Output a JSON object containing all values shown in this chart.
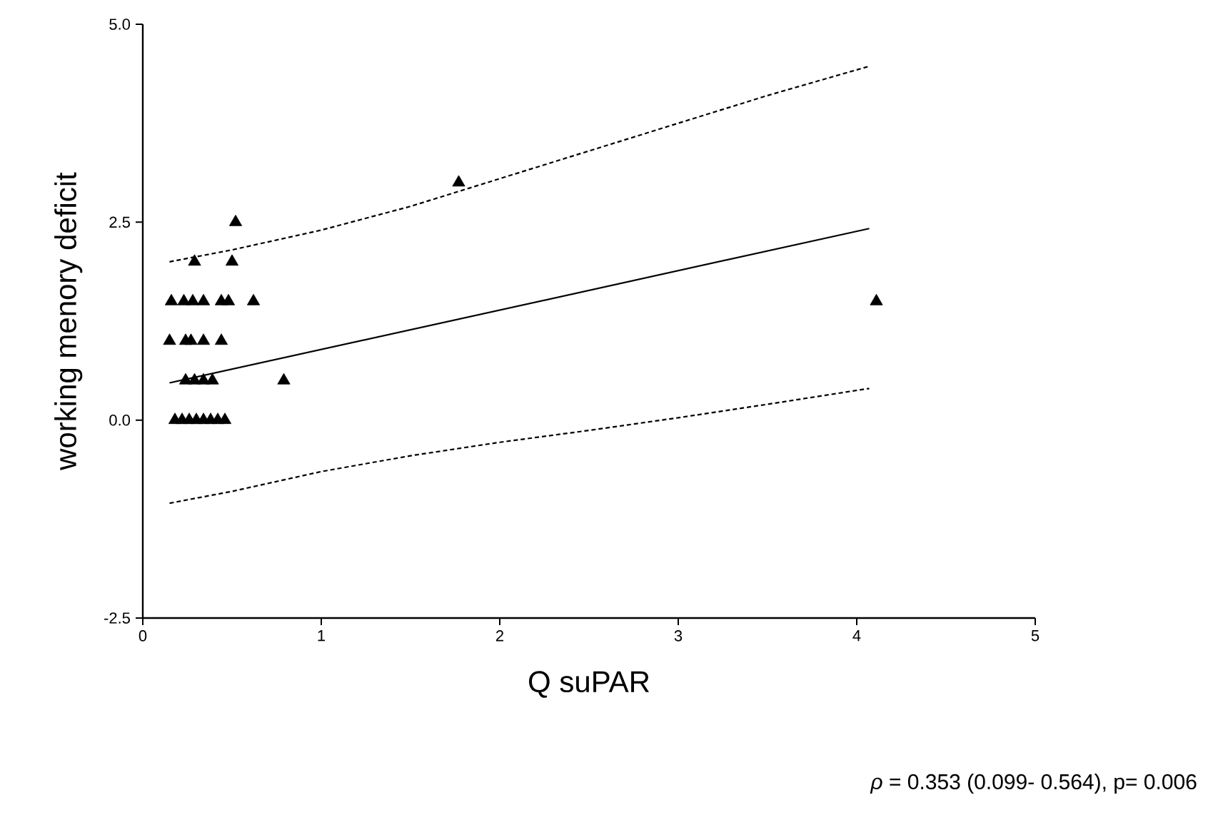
{
  "chart_data": {
    "type": "scatter",
    "xlabel": "Q suPAR",
    "ylabel": "working menory deficit",
    "xlim": [
      0,
      5
    ],
    "ylim": [
      -2.5,
      5.0
    ],
    "xticks": [
      0,
      1,
      2,
      3,
      4,
      5
    ],
    "yticks": [
      {
        "value": -2.5,
        "label": "-2.5"
      },
      {
        "value": 0,
        "label": "0.0"
      },
      {
        "value": 2.5,
        "label": "2.5"
      },
      {
        "value": 5,
        "label": "5.0"
      }
    ],
    "marker": "triangle",
    "grid": false,
    "annotations": [
      "*ρ* = 0.353 (0.099- 0.564), p= 0.006"
    ],
    "series": [
      {
        "color": "#000000",
        "x": [
          0.52,
          0.29,
          0.5,
          0.16,
          0.23,
          0.28,
          0.34,
          0.44,
          0.48,
          0.62,
          0.15,
          0.24,
          0.27,
          0.34,
          0.44,
          0.24,
          0.29,
          0.34,
          0.39,
          0.79,
          0.18,
          0.22,
          0.26,
          0.3,
          0.34,
          0.38,
          0.42,
          0.46,
          1.77,
          4.11
        ],
        "values": [
          2.5,
          2.0,
          2.0,
          1.5,
          1.5,
          1.5,
          1.5,
          1.5,
          1.5,
          1.5,
          1.0,
          1.0,
          1.0,
          1.0,
          1.0,
          0.5,
          0.5,
          0.5,
          0.5,
          0.5,
          0,
          0,
          0,
          0,
          0,
          0,
          0,
          0,
          3.0,
          1.5
        ]
      },
      {
        "type": "line",
        "color": "#000000",
        "line_style": "solid",
        "marker": "none",
        "x": [
          0.15,
          4.07
        ],
        "values": [
          0.47,
          2.42
        ]
      },
      {
        "type": "line",
        "color": "#000000",
        "line_style": "dashed",
        "marker": "none",
        "x": [
          0.15,
          0.5,
          1,
          1.5,
          2,
          2.5,
          3,
          3.5,
          4.07
        ],
        "values": [
          2.0,
          2.15,
          2.4,
          2.7,
          3.05,
          3.4,
          3.75,
          4.1,
          4.47
        ]
      },
      {
        "type": "line",
        "color": "#000000",
        "line_style": "dashed",
        "marker": "none",
        "x": [
          0.15,
          0.5,
          1,
          1.5,
          2,
          2.5,
          3,
          3.5,
          4.07
        ],
        "values": [
          -1.05,
          -0.9,
          -0.65,
          -0.45,
          -0.28,
          -0.13,
          0.03,
          0.2,
          0.4
        ]
      }
    ]
  }
}
